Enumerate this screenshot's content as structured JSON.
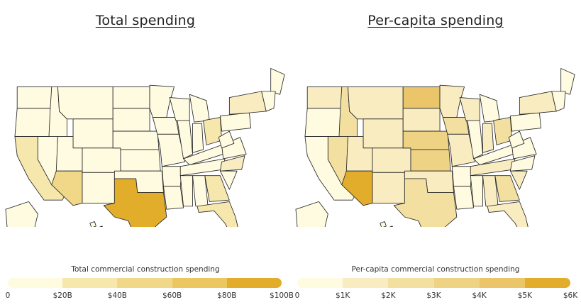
{
  "left": {
    "title": "Total spending",
    "legend_label": "Total commercial construction spending",
    "ticks": [
      "0",
      "$20B",
      "$40B",
      "$60B",
      "$80B",
      "$100B"
    ],
    "colors": [
      "#fefbe1",
      "#f6e7ad",
      "#f0d888",
      "#ebc760",
      "#e3ad2c"
    ]
  },
  "right": {
    "title": "Per-capita spending",
    "legend_label": "Per-capita commercial construction spending",
    "ticks": [
      "0",
      "$1K",
      "$2K",
      "$3K",
      "$4K",
      "$5K",
      "$6K"
    ],
    "colors": [
      "#fefbe1",
      "#f8ecc0",
      "#f3e0a0",
      "#eed384",
      "#eac56a",
      "#e3ad2c"
    ]
  },
  "state_fills": {
    "left": {
      "base": "#fefbe1",
      "CA": "#f6e7ad",
      "AZ": "#f0d888",
      "TX": "#e3ad2c",
      "FL": "#f6e7ad",
      "GA": "#f6e7ad",
      "OH": "#f6e7ad",
      "NY": "#f8ecc0",
      "NC": "#f8ecc0",
      "IL": "#fefbe1"
    },
    "right": {
      "base": "#fefbe1",
      "WA": "#f8ecc0",
      "ID": "#f3e0a0",
      "MT": "#f8ecc0",
      "ND": "#eac56a",
      "SD": "#f8ecc0",
      "WY": "#f8ecc0",
      "NV": "#f3e0a0",
      "UT": "#f8ecc0",
      "CO": "#f8ecc0",
      "NE": "#eed384",
      "KS": "#eed384",
      "IA": "#f3e0a0",
      "AZ": "#e3ad2c",
      "NM": "#f8ecc0",
      "TX": "#f3e0a0",
      "OK": "#f8ecc0",
      "MO": "#f8ecc0",
      "OH": "#f3e0a0",
      "GA": "#f3e0a0",
      "FL": "#f8ecc0",
      "SC": "#f8ecc0",
      "TN": "#f8ecc0",
      "NY": "#f8ecc0",
      "WI": "#f8ecc0",
      "MN": "#f8ecc0",
      "AL": "#f8ecc0",
      "IN": "#f8ecc0"
    }
  }
}
